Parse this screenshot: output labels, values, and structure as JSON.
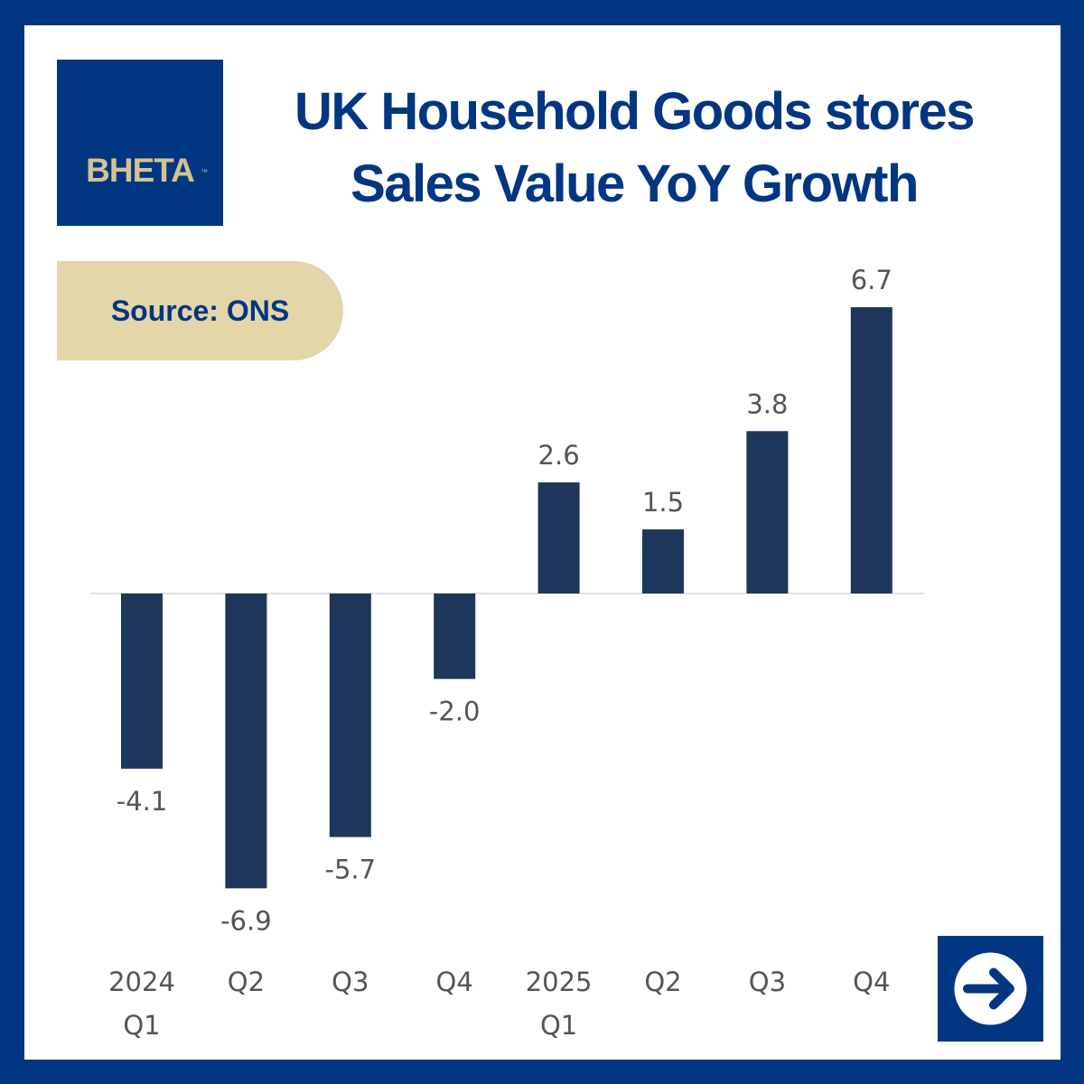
{
  "brand": {
    "logo_text": "BHETA",
    "logo_tm": "™"
  },
  "title_lines": [
    "UK Household Goods stores",
    "Sales Value YoY Growth"
  ],
  "source_label": "Source: ONS",
  "colors": {
    "brand_blue": "#003682",
    "bar": "#1c365c",
    "gold": "#e3d6a9",
    "label": "#555555",
    "axis": "#d9d9d9"
  },
  "chart_data": {
    "type": "bar",
    "title": "UK Household Goods stores Sales Value YoY Growth",
    "xlabel": "",
    "ylabel": "",
    "categories": [
      [
        "2024",
        "Q1"
      ],
      [
        "Q2"
      ],
      [
        "Q3"
      ],
      [
        "Q4"
      ],
      [
        "2025",
        "Q1"
      ],
      [
        "Q2"
      ],
      [
        "Q3"
      ],
      [
        "Q4"
      ]
    ],
    "values": [
      -4.1,
      -6.9,
      -5.7,
      -2.0,
      2.6,
      1.5,
      3.8,
      6.7
    ],
    "value_labels": [
      "-4.1",
      "-6.9",
      "-5.7",
      "-2.0",
      "2.6",
      "1.5",
      "3.8",
      "6.7"
    ],
    "ylim": [
      -6.9,
      6.7
    ],
    "grid": false,
    "legend": "none"
  },
  "next_button": {
    "icon": "arrow-right-icon"
  }
}
